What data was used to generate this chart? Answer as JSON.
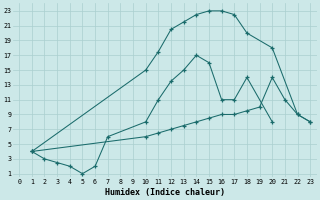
{
  "xlabel": "Humidex (Indice chaleur)",
  "bg_color": "#cce8e8",
  "line_color": "#1a6b6b",
  "grid_color": "#aacfcf",
  "xlim": [
    -0.5,
    23.5
  ],
  "ylim": [
    0.5,
    24
  ],
  "xticks": [
    0,
    1,
    2,
    3,
    4,
    5,
    6,
    7,
    8,
    9,
    10,
    11,
    12,
    13,
    14,
    15,
    16,
    17,
    18,
    19,
    20,
    21,
    22,
    23
  ],
  "yticks": [
    1,
    3,
    5,
    7,
    9,
    11,
    13,
    15,
    17,
    19,
    21,
    23
  ],
  "line1_x": [
    1,
    2,
    3,
    4,
    5,
    6,
    7,
    10,
    11,
    12,
    13,
    14,
    15,
    16,
    17,
    18,
    20
  ],
  "line1_y": [
    4,
    3,
    2.5,
    2,
    1,
    2,
    6,
    8,
    11,
    13.5,
    15,
    17,
    16,
    11,
    11,
    14,
    8
  ],
  "line2_x": [
    1,
    10,
    11,
    12,
    13,
    14,
    15,
    16,
    17,
    18,
    20,
    22,
    23
  ],
  "line2_y": [
    4,
    15,
    17.5,
    20.5,
    21.5,
    22.5,
    23,
    23,
    22.5,
    20,
    18,
    9,
    8
  ],
  "line3_x": [
    1,
    10,
    11,
    12,
    13,
    14,
    15,
    16,
    17,
    18,
    19,
    20,
    21,
    22,
    23
  ],
  "line3_y": [
    4,
    6,
    6.5,
    7,
    7.5,
    8,
    8.5,
    9,
    9,
    9.5,
    10,
    14,
    11,
    9,
    8
  ]
}
